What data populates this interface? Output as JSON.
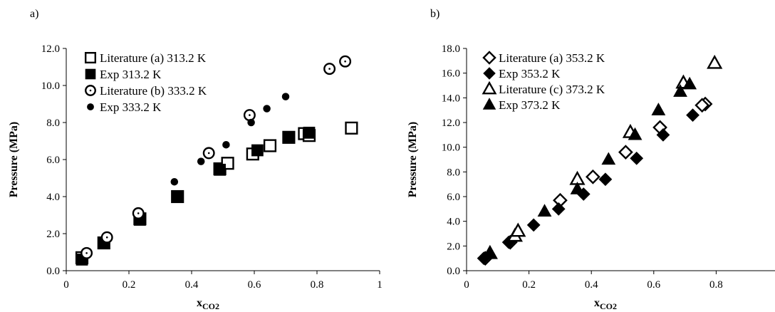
{
  "chart_data": [
    {
      "type": "scatter",
      "panel_label": "a)",
      "xlabel_main": "x",
      "xlabel_sub": "CO2",
      "ylabel": "Pressure (MPa)",
      "xlim": [
        0,
        1
      ],
      "ylim": [
        0,
        12
      ],
      "x_ticks": [
        "0",
        "0.2",
        "0.4",
        "0.6",
        "0.8",
        "1"
      ],
      "y_ticks": [
        "0.0",
        "2.0",
        "4.0",
        "6.0",
        "8.0",
        "10.0",
        "12.0"
      ],
      "legend_position": "top-left",
      "series": [
        {
          "name": "Literature (a) 313.2 K",
          "marker": "square-open",
          "x": [
            0.05,
            0.12,
            0.235,
            0.355,
            0.49,
            0.515,
            0.595,
            0.65,
            0.71,
            0.76,
            0.775,
            0.91
          ],
          "y": [
            0.7,
            1.5,
            2.8,
            4.0,
            5.5,
            5.8,
            6.3,
            6.75,
            7.2,
            7.4,
            7.3,
            7.7
          ]
        },
        {
          "name": "Exp 313.2 K",
          "marker": "square-filled",
          "x": [
            0.05,
            0.12,
            0.235,
            0.355,
            0.49,
            0.61,
            0.71,
            0.775
          ],
          "y": [
            0.6,
            1.5,
            2.75,
            4.0,
            5.45,
            6.5,
            7.2,
            7.45
          ]
        },
        {
          "name": "Literature (b) 333.2 K",
          "marker": "circle-open",
          "x": [
            0.065,
            0.13,
            0.23,
            0.455,
            0.585,
            0.84,
            0.89
          ],
          "y": [
            0.95,
            1.8,
            3.1,
            6.35,
            8.4,
            10.9,
            11.3
          ]
        },
        {
          "name": "Exp 333.2 K",
          "marker": "circle-filled",
          "x": [
            0.345,
            0.43,
            0.51,
            0.59,
            0.64,
            0.7
          ],
          "y": [
            4.8,
            5.9,
            6.8,
            8.0,
            8.75,
            9.4
          ]
        }
      ]
    },
    {
      "type": "scatter",
      "panel_label": "b)",
      "xlabel_main": "x",
      "xlabel_sub": "CO2",
      "ylabel": "Pressure (MPa)",
      "xlim": [
        0,
        1
      ],
      "ylim": [
        0,
        18
      ],
      "x_ticks": [
        "0",
        "0.2",
        "0.4",
        "0.6",
        "0.8"
      ],
      "y_ticks": [
        "0.0",
        "2.0",
        "4.0",
        "6.0",
        "8.0",
        "10.0",
        "12.0",
        "14.0",
        "16.0",
        "18.0"
      ],
      "legend_position": "top-left",
      "series": [
        {
          "name": "Literature (a) 353.2 K",
          "marker": "diamond-open",
          "x": [
            0.06,
            0.14,
            0.3,
            0.405,
            0.51,
            0.62,
            0.765,
            0.755
          ],
          "y": [
            1.0,
            2.3,
            5.7,
            7.6,
            9.6,
            11.6,
            13.5,
            13.4
          ]
        },
        {
          "name": "Exp 353.2 K",
          "marker": "diamond-filled",
          "x": [
            0.055,
            0.135,
            0.215,
            0.295,
            0.375,
            0.445,
            0.545,
            0.63,
            0.725
          ],
          "y": [
            1.0,
            2.3,
            3.7,
            5.0,
            6.2,
            7.4,
            9.1,
            11.0,
            12.6
          ]
        },
        {
          "name": "Literature (c)  373.2 K",
          "marker": "triangle-open",
          "x": [
            0.075,
            0.155,
            0.165,
            0.355,
            0.525,
            0.695,
            0.795
          ],
          "y": [
            1.4,
            2.8,
            3.2,
            7.4,
            11.2,
            15.2,
            16.8
          ]
        },
        {
          "name": "Exp 373.2 K",
          "marker": "triangle-filled",
          "x": [
            0.075,
            0.25,
            0.355,
            0.455,
            0.54,
            0.615,
            0.685,
            0.715
          ],
          "y": [
            1.4,
            4.8,
            6.6,
            9.0,
            11.0,
            13.0,
            14.5,
            15.1
          ]
        }
      ]
    }
  ]
}
